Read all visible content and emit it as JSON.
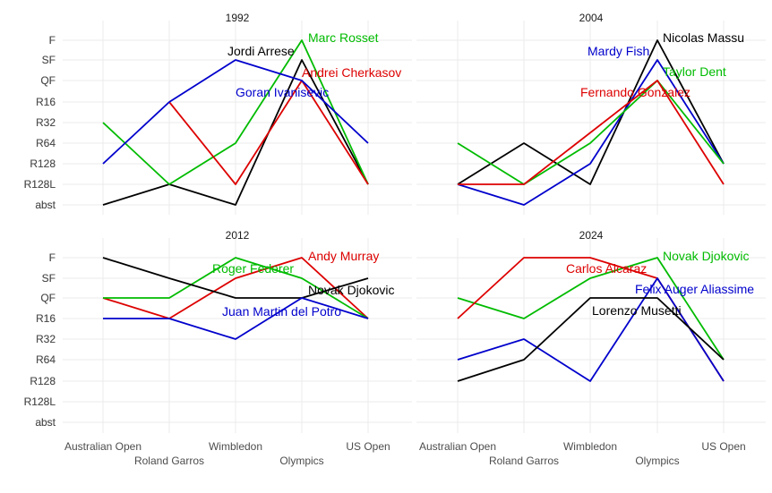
{
  "chart_data": {
    "type": "line",
    "levels": [
      "abst",
      "R128L",
      "R128",
      "R64",
      "R32",
      "R16",
      "QF",
      "SF",
      "F"
    ],
    "events": [
      "Australian Open",
      "Roland Garros",
      "Wimbledon",
      "Olympics",
      "US Open"
    ],
    "grid": true,
    "legend": "none",
    "colors": {
      "black": "#000000",
      "red": "#dd0000",
      "green": "#00bb00",
      "blue": "#0000cc"
    },
    "panels": [
      {
        "title": "1992",
        "series": [
          {
            "name": "Jordi Arrese",
            "color": "black",
            "values": [
              "abst",
              "R128L",
              "abst",
              "SF",
              "R128L"
            ]
          },
          {
            "name": "Marc Rosset",
            "color": "green",
            "values": [
              "R32",
              "R128L",
              "R64",
              "F",
              "R128L"
            ]
          },
          {
            "name": "Andrei Cherkasov",
            "color": "red",
            "values": [
              null,
              "R16",
              "R128L",
              "QF",
              "R128L"
            ]
          },
          {
            "name": "Goran Ivanisevic",
            "color": "blue",
            "values": [
              "R128",
              "R16",
              "SF",
              "QF",
              "R64"
            ]
          }
        ]
      },
      {
        "title": "2004",
        "series": [
          {
            "name": "Nicolas Massu",
            "color": "black",
            "values": [
              "R128L",
              "R64",
              "R128L",
              "F",
              "R128"
            ]
          },
          {
            "name": "Mardy Fish",
            "color": "blue",
            "values": [
              "R128L",
              "abst",
              "R128",
              "SF",
              "R128"
            ]
          },
          {
            "name": "Taylor Dent",
            "color": "green",
            "values": [
              "R64",
              "R128L",
              "R64",
              "QF",
              "R128"
            ]
          },
          {
            "name": "Fernando Gonzalez",
            "color": "red",
            "values": [
              "R128L",
              "R128L",
              null,
              "QF",
              "R128L"
            ]
          }
        ]
      },
      {
        "title": "2012",
        "series": [
          {
            "name": "Andy Murray",
            "color": "red",
            "values": [
              "QF",
              "R16",
              "SF",
              "F",
              "R16"
            ]
          },
          {
            "name": "Roger Federer",
            "color": "green",
            "values": [
              "QF",
              "QF",
              "F",
              "SF",
              "R16"
            ]
          },
          {
            "name": "Novak Djokovic",
            "color": "black",
            "values": [
              "F",
              "SF",
              "QF",
              "QF",
              "SF"
            ]
          },
          {
            "name": "Juan Martin del Potro",
            "color": "blue",
            "values": [
              "R16",
              "R16",
              "R32",
              "QF",
              "R16"
            ]
          }
        ]
      },
      {
        "title": "2024",
        "series": [
          {
            "name": "Novak Djokovic",
            "color": "green",
            "values": [
              "QF",
              "R16",
              "SF",
              "F",
              "R64"
            ]
          },
          {
            "name": "Carlos Alcaraz",
            "color": "red",
            "values": [
              "R16",
              "F",
              "F",
              "SF",
              "R128"
            ]
          },
          {
            "name": "Felix Auger Aliassime",
            "color": "blue",
            "values": [
              "R64",
              "R32",
              "R128",
              "SF",
              "R128"
            ]
          },
          {
            "name": "Lorenzo Musetti",
            "color": "black",
            "values": [
              "R128",
              "R64",
              "QF",
              "QF",
              "R64"
            ]
          }
        ]
      }
    ]
  }
}
